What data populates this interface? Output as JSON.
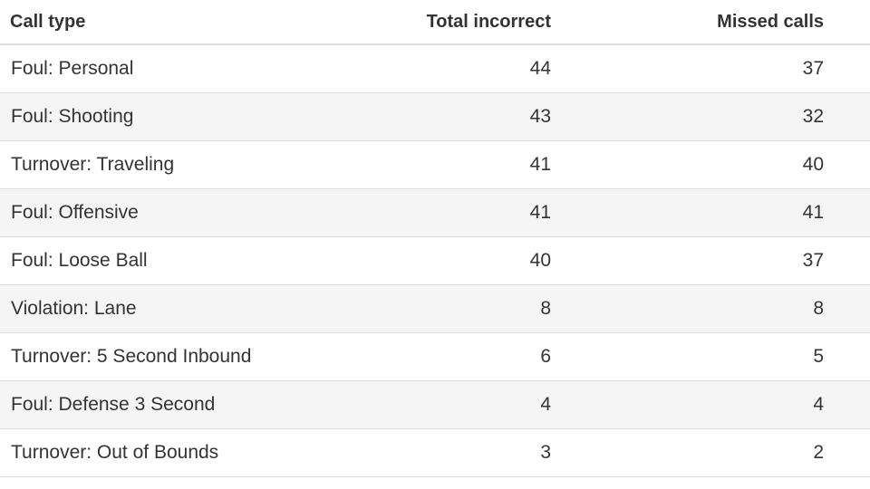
{
  "chart_data": {
    "type": "table",
    "columns": [
      "Call type",
      "Total incorrect",
      "Missed calls"
    ],
    "rows": [
      {
        "call_type": "Foul: Personal",
        "total_incorrect": 44,
        "missed_calls": 37
      },
      {
        "call_type": "Foul: Shooting",
        "total_incorrect": 43,
        "missed_calls": 32
      },
      {
        "call_type": "Turnover: Traveling",
        "total_incorrect": 41,
        "missed_calls": 40
      },
      {
        "call_type": "Foul: Offensive",
        "total_incorrect": 41,
        "missed_calls": 41
      },
      {
        "call_type": "Foul: Loose Ball",
        "total_incorrect": 40,
        "missed_calls": 37
      },
      {
        "call_type": "Violation: Lane",
        "total_incorrect": 8,
        "missed_calls": 8
      },
      {
        "call_type": "Turnover: 5 Second Inbound",
        "total_incorrect": 6,
        "missed_calls": 5
      },
      {
        "call_type": "Foul: Defense 3 Second",
        "total_incorrect": 4,
        "missed_calls": 4
      },
      {
        "call_type": "Turnover: Out of Bounds",
        "total_incorrect": 3,
        "missed_calls": 2
      }
    ]
  }
}
